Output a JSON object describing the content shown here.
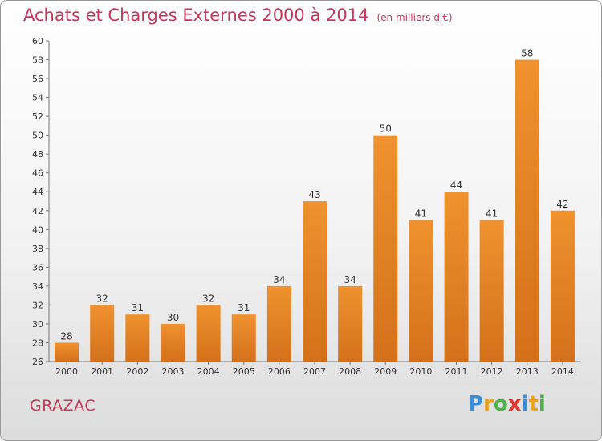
{
  "chart_data": {
    "type": "bar",
    "title": "Achats et Charges Externes 2000 à 2014",
    "subtitle": "(en milliers d'€)",
    "categories": [
      "2000",
      "2001",
      "2002",
      "2003",
      "2004",
      "2005",
      "2006",
      "2007",
      "2008",
      "2009",
      "2010",
      "2011",
      "2012",
      "2013",
      "2014"
    ],
    "values": [
      28,
      32,
      31,
      30,
      32,
      31,
      34,
      43,
      34,
      50,
      41,
      44,
      41,
      58,
      42
    ],
    "ylim": [
      26,
      60
    ],
    "ytick_step": 2,
    "xlabel": "",
    "ylabel": "",
    "grid": false,
    "bar_color": "#f0922f",
    "bar_color_dark": "#d4701a"
  },
  "commune": "GRAZAC",
  "logo": {
    "letters": [
      "P",
      "r",
      "o",
      "x",
      "i",
      "t",
      "i"
    ],
    "colors": [
      "#3a8fd6",
      "#e8a21e",
      "#4bb04a",
      "#e2372e",
      "#3a8fd6",
      "#e8a21e",
      "#4bb04a"
    ]
  }
}
